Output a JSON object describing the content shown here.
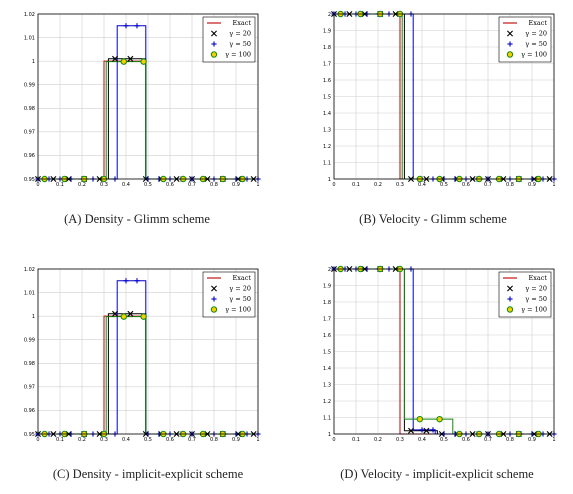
{
  "chart_data": [
    {
      "type": "line",
      "caption_label": "(A)",
      "caption_text": "Density - Glimm scheme",
      "xlim": [
        0,
        1
      ],
      "ylim": [
        0.95,
        1.02
      ],
      "x_ticks": [
        "0",
        "0.1",
        "0.2",
        "0.3",
        "0.4",
        "0.5",
        "0.6",
        "0.7",
        "0.8",
        "0.9",
        "1"
      ],
      "y_ticks": [
        "0.95",
        "0.96",
        "0.97",
        "0.98",
        "0.99",
        "1",
        "1.01",
        "1.02"
      ],
      "grid": true,
      "legend_position": "top-right",
      "legend": [
        "Exact",
        "γ = 20",
        "γ = 50",
        "γ = 100"
      ],
      "series": [
        {
          "name": "Exact",
          "color": "#c00000",
          "marker": "none",
          "x": [
            0,
            0.3,
            0.3,
            0.49,
            0.49,
            1
          ],
          "y": [
            0.95,
            0.95,
            1.0,
            1.0,
            0.95,
            0.95
          ]
        },
        {
          "name": "γ = 20",
          "color": "#000000",
          "marker": "x",
          "x": [
            0,
            0.32,
            0.32,
            0.49,
            0.49,
            1
          ],
          "y": [
            0.95,
            0.95,
            1.001,
            1.001,
            0.95,
            0.95
          ],
          "markers_x": [
            0.0,
            0.07,
            0.14,
            0.21,
            0.28,
            0.35,
            0.42,
            0.49,
            0.56,
            0.63,
            0.7,
            0.77,
            0.84,
            0.91,
            0.98
          ]
        },
        {
          "name": "γ = 50",
          "color": "#0000cc",
          "marker": "+",
          "x": [
            0,
            0.36,
            0.36,
            0.49,
            0.49,
            1
          ],
          "y": [
            0.95,
            0.95,
            1.015,
            1.015,
            0.95,
            0.95
          ],
          "markers_x": [
            0.0,
            0.05,
            0.1,
            0.15,
            0.2,
            0.25,
            0.3,
            0.35,
            0.4,
            0.45,
            0.5,
            0.55,
            0.6,
            0.65,
            0.7,
            0.75,
            0.8,
            0.85,
            0.9,
            0.95,
            1.0
          ]
        },
        {
          "name": "γ = 100",
          "color": "#118811",
          "marker": "o",
          "x": [
            0,
            0.31,
            0.31,
            0.49,
            0.49,
            1
          ],
          "y": [
            0.95,
            0.95,
            0.9998,
            0.9998,
            0.95,
            0.95
          ],
          "markers_x": [
            0.03,
            0.12,
            0.21,
            0.3,
            0.39,
            0.48,
            0.57,
            0.66,
            0.75,
            0.84,
            0.93
          ]
        }
      ]
    },
    {
      "type": "line",
      "caption_label": "(B)",
      "caption_text": "Velocity - Glimm scheme",
      "xlim": [
        0,
        1
      ],
      "ylim": [
        1,
        2
      ],
      "x_ticks": [
        "0",
        "0.1",
        "0.2",
        "0.3",
        "0.4",
        "0.5",
        "0.6",
        "0.7",
        "0.8",
        "0.9",
        "1"
      ],
      "y_ticks": [
        "1",
        "1.1",
        "1.2",
        "1.3",
        "1.4",
        "1.5",
        "1.6",
        "1.7",
        "1.8",
        "1.9",
        "2"
      ],
      "grid": true,
      "legend_position": "top-right",
      "legend": [
        "Exact",
        "γ = 20",
        "γ = 50",
        "γ = 100"
      ],
      "series": [
        {
          "name": "Exact",
          "color": "#c00000",
          "marker": "none",
          "x": [
            0,
            0.3,
            0.3,
            1
          ],
          "y": [
            2,
            2,
            1,
            1
          ]
        },
        {
          "name": "γ = 20",
          "color": "#000000",
          "marker": "x",
          "x": [
            0,
            0.32,
            0.32,
            1
          ],
          "y": [
            2,
            2,
            1,
            1
          ],
          "markers_x": [
            0.0,
            0.07,
            0.14,
            0.21,
            0.28,
            0.35,
            0.42,
            0.49,
            0.56,
            0.63,
            0.7,
            0.77,
            0.84,
            0.91,
            0.98
          ]
        },
        {
          "name": "γ = 50",
          "color": "#0000cc",
          "marker": "+",
          "x": [
            0,
            0.36,
            0.36,
            1
          ],
          "y": [
            2,
            2,
            1,
            1
          ],
          "markers_x": [
            0.0,
            0.05,
            0.1,
            0.15,
            0.2,
            0.25,
            0.3,
            0.35,
            0.4,
            0.45,
            0.5,
            0.55,
            0.6,
            0.65,
            0.7,
            0.75,
            0.8,
            0.85,
            0.9,
            0.95,
            1.0
          ]
        },
        {
          "name": "γ = 100",
          "color": "#118811",
          "marker": "o",
          "x": [
            0,
            0.31,
            0.31,
            1
          ],
          "y": [
            2,
            2,
            1,
            1
          ],
          "markers_x": [
            0.03,
            0.12,
            0.21,
            0.3,
            0.39,
            0.48,
            0.57,
            0.66,
            0.75,
            0.84,
            0.93
          ]
        }
      ]
    },
    {
      "type": "line",
      "caption_label": "(C)",
      "caption_text": "Density - implicit-explicit scheme",
      "xlim": [
        0,
        1
      ],
      "ylim": [
        0.95,
        1.02
      ],
      "x_ticks": [
        "0",
        "0.1",
        "0.2",
        "0.3",
        "0.4",
        "0.5",
        "0.6",
        "0.7",
        "0.8",
        "0.9",
        "1"
      ],
      "y_ticks": [
        "0.95",
        "0.96",
        "0.97",
        "0.98",
        "0.99",
        "1",
        "1.01",
        "1.02"
      ],
      "grid": true,
      "legend_position": "top-right",
      "legend": [
        "Exact",
        "γ = 20",
        "γ = 50",
        "γ = 100"
      ],
      "series": [
        {
          "name": "Exact",
          "color": "#c00000",
          "marker": "none",
          "x": [
            0,
            0.3,
            0.3,
            0.49,
            0.49,
            1
          ],
          "y": [
            0.95,
            0.95,
            1.0,
            1.0,
            0.95,
            0.95
          ]
        },
        {
          "name": "γ = 20",
          "color": "#000000",
          "marker": "x",
          "x": [
            0,
            0.32,
            0.32,
            0.49,
            0.49,
            1
          ],
          "y": [
            0.95,
            0.95,
            1.001,
            1.001,
            0.95,
            0.95
          ],
          "markers_x": [
            0.0,
            0.07,
            0.14,
            0.21,
            0.28,
            0.35,
            0.42,
            0.49,
            0.56,
            0.63,
            0.7,
            0.77,
            0.84,
            0.91,
            0.98
          ]
        },
        {
          "name": "γ = 50",
          "color": "#0000cc",
          "marker": "+",
          "x": [
            0,
            0.36,
            0.36,
            0.49,
            0.49,
            1
          ],
          "y": [
            0.95,
            0.95,
            1.015,
            1.015,
            0.95,
            0.95
          ],
          "markers_x": [
            0.0,
            0.05,
            0.1,
            0.15,
            0.2,
            0.25,
            0.3,
            0.35,
            0.4,
            0.45,
            0.5,
            0.55,
            0.6,
            0.65,
            0.7,
            0.75,
            0.8,
            0.85,
            0.9,
            0.95,
            1.0
          ]
        },
        {
          "name": "γ = 100",
          "color": "#118811",
          "marker": "o",
          "x": [
            0,
            0.31,
            0.31,
            0.49,
            0.49,
            1
          ],
          "y": [
            0.95,
            0.95,
            0.9998,
            0.9998,
            0.95,
            0.95
          ],
          "markers_x": [
            0.03,
            0.12,
            0.21,
            0.3,
            0.39,
            0.48,
            0.57,
            0.66,
            0.75,
            0.84,
            0.93
          ]
        }
      ]
    },
    {
      "type": "line",
      "caption_label": "(D)",
      "caption_text": "Velocity - implicit-explicit scheme",
      "xlim": [
        0,
        1
      ],
      "ylim": [
        1,
        2
      ],
      "x_ticks": [
        "0",
        "0.1",
        "0.2",
        "0.3",
        "0.4",
        "0.5",
        "0.6",
        "0.7",
        "0.8",
        "0.9",
        "1"
      ],
      "y_ticks": [
        "1",
        "1.1",
        "1.2",
        "1.3",
        "1.4",
        "1.5",
        "1.6",
        "1.7",
        "1.8",
        "1.9",
        "2"
      ],
      "grid": true,
      "legend_position": "top-right",
      "legend": [
        "Exact",
        "γ = 20",
        "γ = 50",
        "γ = 100"
      ],
      "series": [
        {
          "name": "Exact",
          "color": "#c00000",
          "marker": "none",
          "x": [
            0,
            0.3,
            0.3,
            1
          ],
          "y": [
            2,
            2,
            1,
            1
          ]
        },
        {
          "name": "γ = 20",
          "color": "#000000",
          "marker": "x",
          "x": [
            0,
            0.32,
            0.32,
            0.47,
            0.47,
            1
          ],
          "y": [
            2,
            2,
            1.02,
            1.02,
            1,
            1
          ],
          "markers_x": [
            0.0,
            0.07,
            0.14,
            0.21,
            0.28,
            0.35,
            0.42,
            0.49,
            0.56,
            0.63,
            0.7,
            0.77,
            0.84,
            0.91,
            0.98
          ]
        },
        {
          "name": "γ = 50",
          "color": "#0000cc",
          "marker": "+",
          "x": [
            0,
            0.36,
            0.36,
            0.46,
            0.46,
            1
          ],
          "y": [
            2,
            2,
            1.025,
            1.025,
            1,
            1
          ],
          "markers_x": [
            0.0,
            0.05,
            0.1,
            0.15,
            0.2,
            0.25,
            0.3,
            0.35,
            0.4,
            0.45,
            0.5,
            0.55,
            0.6,
            0.65,
            0.7,
            0.75,
            0.8,
            0.85,
            0.9,
            0.95,
            1.0
          ]
        },
        {
          "name": "γ = 100",
          "color": "#118811",
          "marker": "o",
          "x": [
            0,
            0.32,
            0.32,
            0.54,
            0.54,
            1
          ],
          "y": [
            2,
            2,
            1.09,
            1.09,
            1,
            1
          ],
          "markers_x": [
            0.03,
            0.12,
            0.21,
            0.3,
            0.39,
            0.48,
            0.57,
            0.66,
            0.75,
            0.84,
            0.93
          ]
        }
      ]
    }
  ]
}
